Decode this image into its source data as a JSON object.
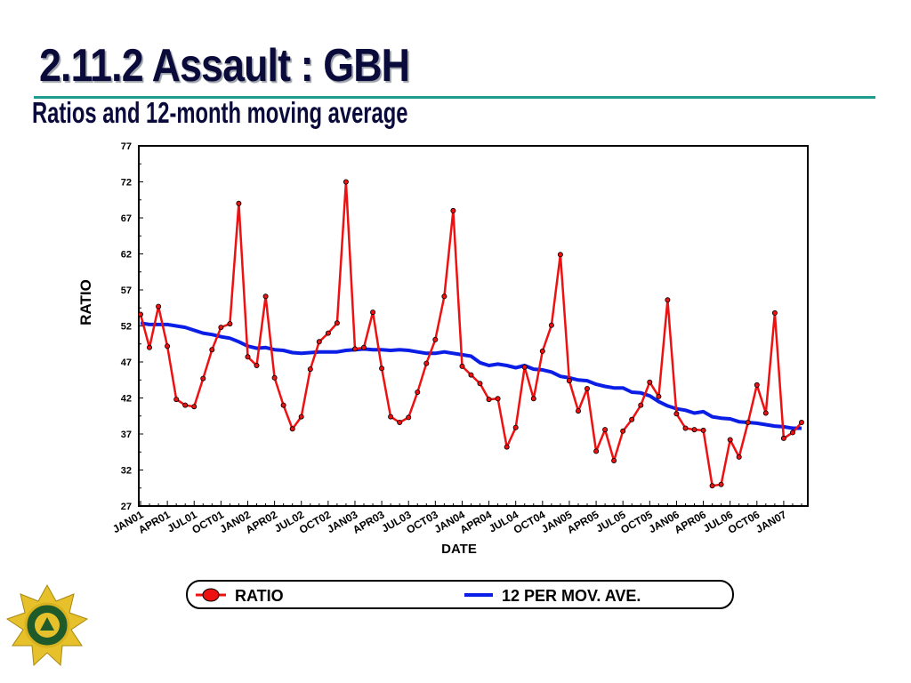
{
  "slide": {
    "title": "2.11.2 Assault : GBH",
    "subtitle": "Ratios and 12-month moving average"
  },
  "colors": {
    "ratio": "#ee1111",
    "moving_average": "#0a1ee6",
    "title": "#0b0b3b",
    "rule": "#1c9b8e"
  },
  "chart_data": {
    "type": "line",
    "xlabel": "DATE",
    "ylabel": "RATIO",
    "ylim": [
      27,
      77
    ],
    "yticks": [
      27,
      32,
      37,
      42,
      47,
      52,
      57,
      62,
      67,
      72,
      77
    ],
    "tick_labels": [
      "JAN01",
      "APR01",
      "JUL01",
      "OCT01",
      "JAN02",
      "APR02",
      "JUL02",
      "OCT02",
      "JAN03",
      "APR03",
      "JUL03",
      "OCT03",
      "JAN04",
      "APR04",
      "JUL04",
      "OCT04",
      "JAN05",
      "APR05",
      "JUL05",
      "OCT05",
      "JAN06",
      "APR06",
      "JUL06",
      "OCT06",
      "JAN07"
    ],
    "x_range": [
      "JAN01",
      "JAN07"
    ],
    "grid": false,
    "legend_position": "bottom",
    "series": [
      {
        "name": "RATIO",
        "marker": "circle",
        "values": [
          53.6,
          49.0,
          54.7,
          49.2,
          41.8,
          41.0,
          40.8,
          44.7,
          48.7,
          51.8,
          52.3,
          69.0,
          47.7,
          46.5,
          56.1,
          44.8,
          41.0,
          37.7,
          39.4,
          46.0,
          49.8,
          51.0,
          52.4,
          72.0,
          48.8,
          49.0,
          53.9,
          46.1,
          39.4,
          38.6,
          39.3,
          42.8,
          46.8,
          50.1,
          56.1,
          68.0,
          46.4,
          45.2,
          44.0,
          41.8,
          41.9,
          35.2,
          37.9,
          46.3,
          41.9,
          48.5,
          52.1,
          61.9,
          44.4,
          40.2,
          43.3,
          34.6,
          37.6,
          33.3,
          37.4,
          39.0,
          41.0,
          44.2,
          42.2,
          55.6,
          39.8,
          37.8,
          37.6,
          37.5,
          29.8,
          30.0,
          36.2,
          33.8,
          38.6,
          43.8,
          39.9,
          53.8,
          36.4,
          37.2,
          38.6
        ]
      },
      {
        "name": "12 PER MOV. AVE.",
        "values": [
          52.4,
          52.2,
          52.2,
          52.2,
          52.0,
          51.8,
          51.4,
          51.0,
          50.8,
          50.5,
          50.3,
          49.8,
          49.2,
          48.9,
          49.0,
          48.7,
          48.6,
          48.3,
          48.2,
          48.3,
          48.4,
          48.4,
          48.4,
          48.6,
          48.7,
          48.8,
          48.7,
          48.7,
          48.6,
          48.7,
          48.6,
          48.4,
          48.2,
          48.2,
          48.4,
          48.2,
          48.0,
          47.8,
          46.9,
          46.5,
          46.7,
          46.5,
          46.2,
          46.5,
          46.0,
          45.9,
          45.6,
          45.0,
          44.8,
          44.5,
          44.4,
          43.9,
          43.6,
          43.4,
          43.4,
          42.8,
          42.7,
          42.3,
          41.5,
          40.9,
          40.5,
          40.3,
          39.9,
          40.1,
          39.4,
          39.2,
          39.1,
          38.7,
          38.6,
          38.5,
          38.3,
          38.1,
          38.0,
          37.8,
          37.8
        ]
      }
    ]
  }
}
